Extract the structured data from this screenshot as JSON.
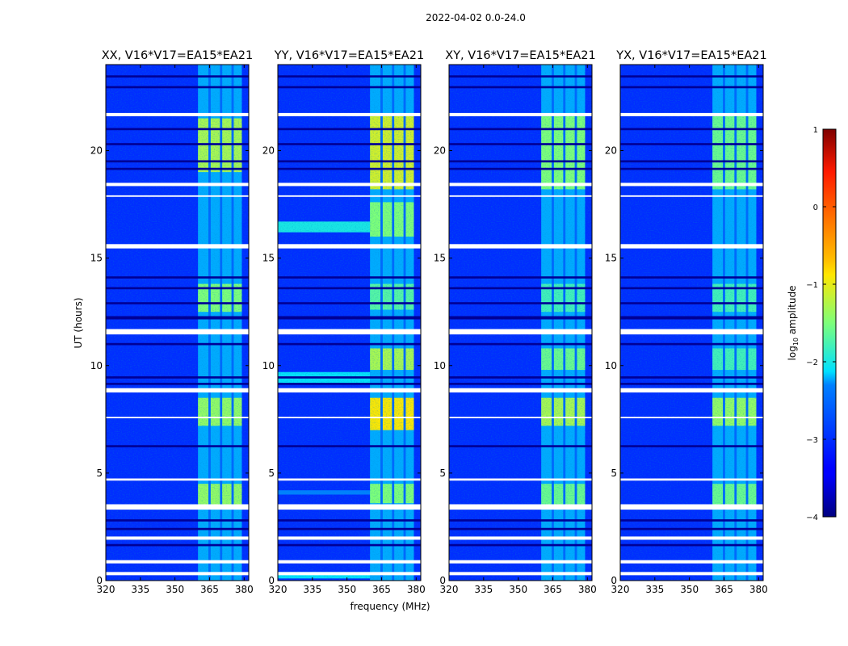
{
  "chart_data": {
    "type": "heatmap",
    "suptitle": "2022-04-02 0.0-24.0",
    "xlabel": "frequency (MHz)",
    "ylabel": "UT (hours)",
    "xlim": [
      320,
      382
    ],
    "ylim": [
      0,
      24
    ],
    "xticks": [
      320,
      335,
      350,
      365,
      380
    ],
    "yticks": [
      0,
      5,
      10,
      15,
      20
    ],
    "colorscale": "jet",
    "colorbar": {
      "label_prefix": "log",
      "label_sub": "10",
      "label_suffix": " amplitude",
      "range": [
        -4,
        1
      ],
      "ticks": [
        1,
        0,
        -1,
        -2,
        -3,
        -4
      ],
      "tick_labels": [
        "1",
        "0",
        "−1",
        "−2",
        "−3",
        "−4"
      ]
    },
    "rfi_band_mhz": [
      360,
      379
    ],
    "rfi_channels_mhz": [
      [
        360,
        364.5
      ],
      [
        365.5,
        369.5
      ],
      [
        370.5,
        374.5
      ],
      [
        375.5,
        379
      ]
    ],
    "flagged_hours": [
      [
        0.25,
        0.4
      ],
      [
        0.8,
        0.95
      ],
      [
        1.9,
        2.05
      ],
      [
        3.3,
        3.55
      ],
      [
        4.65,
        4.75
      ],
      [
        7.55,
        7.62
      ],
      [
        8.75,
        8.95
      ],
      [
        11.45,
        11.7
      ],
      [
        15.45,
        15.65
      ],
      [
        17.85,
        17.92
      ],
      [
        18.35,
        18.5
      ],
      [
        21.6,
        21.75
      ]
    ],
    "dark_hours": [
      [
        1.6,
        1.7
      ],
      [
        2.35,
        2.45
      ],
      [
        2.75,
        2.85
      ],
      [
        6.2,
        6.3
      ],
      [
        9.1,
        9.2
      ],
      [
        9.4,
        9.5
      ],
      [
        10.95,
        11.05
      ],
      [
        12.15,
        12.3
      ],
      [
        12.85,
        12.95
      ],
      [
        13.55,
        13.65
      ],
      [
        14.05,
        14.15
      ],
      [
        19.1,
        19.2
      ],
      [
        19.45,
        19.55
      ],
      [
        20.25,
        20.35
      ],
      [
        20.95,
        21.05
      ],
      [
        22.9,
        23.0
      ],
      [
        23.4,
        23.5
      ]
    ],
    "panels": [
      {
        "title": "XX, V16*V17=EA15*EA21",
        "bright_hours": [
          [
            3.5,
            4.5,
            -1.4
          ],
          [
            7.2,
            8.5,
            -1.4
          ],
          [
            12.5,
            13.8,
            -1.5
          ],
          [
            19.0,
            21.5,
            -1.3
          ]
        ]
      },
      {
        "title": "YY, V16*V17=EA15*EA21",
        "bright_hours": [
          [
            3.6,
            4.5,
            -1.5
          ],
          [
            7.0,
            8.5,
            -0.9
          ],
          [
            9.8,
            10.8,
            -1.3
          ],
          [
            12.6,
            13.8,
            -1.7
          ],
          [
            16.0,
            17.6,
            -1.5
          ],
          [
            18.2,
            21.6,
            -1.1
          ]
        ],
        "low_freq_bands": [
          [
            16.2,
            16.7,
            -2.0
          ],
          [
            9.2,
            9.7,
            -2.1
          ],
          [
            4.0,
            4.2,
            -2.3
          ],
          [
            0.1,
            0.4,
            -2.1
          ]
        ]
      },
      {
        "title": "XY, V16*V17=EA15*EA21",
        "bright_hours": [
          [
            3.5,
            4.5,
            -1.6
          ],
          [
            7.2,
            8.5,
            -1.3
          ],
          [
            9.8,
            10.8,
            -1.6
          ],
          [
            12.5,
            13.8,
            -1.8
          ],
          [
            18.2,
            21.6,
            -1.5
          ]
        ]
      },
      {
        "title": "YX, V16*V17=EA15*EA21",
        "bright_hours": [
          [
            3.5,
            4.5,
            -1.6
          ],
          [
            7.2,
            8.5,
            -1.4
          ],
          [
            9.8,
            10.8,
            -1.8
          ],
          [
            12.5,
            13.8,
            -1.8
          ],
          [
            18.2,
            21.6,
            -1.6
          ]
        ]
      }
    ]
  }
}
